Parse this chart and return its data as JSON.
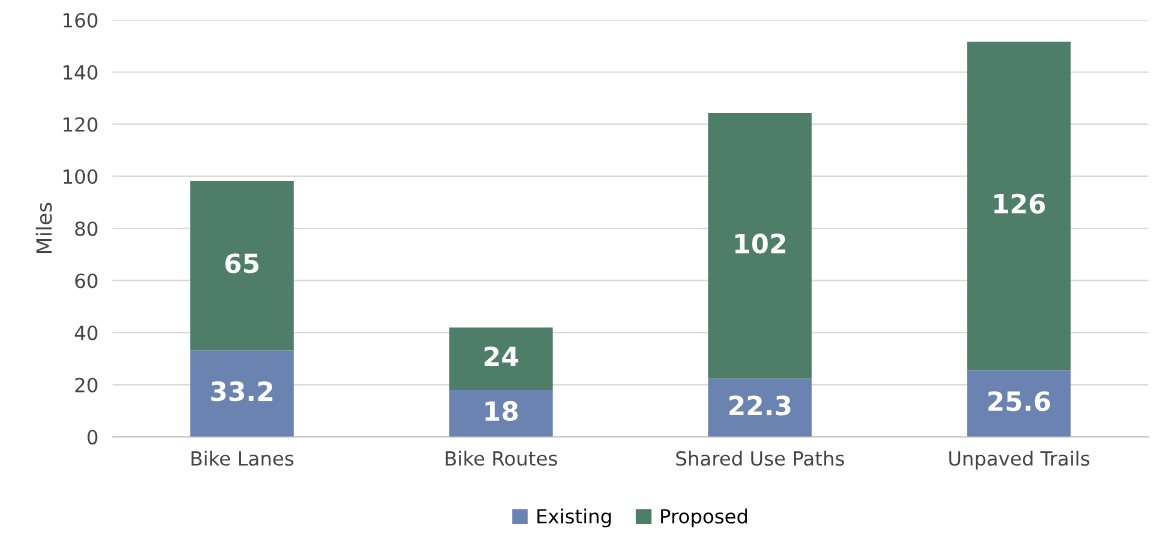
{
  "chart_data": {
    "type": "bar",
    "stacked": true,
    "ylabel": "Miles",
    "categories": [
      "Bike Lanes",
      "Bike Routes",
      "Shared Use Paths",
      "Unpaved Trails"
    ],
    "series": [
      {
        "name": "Existing",
        "color": "#6b83b0",
        "values": [
          33.2,
          18,
          22.3,
          25.6
        ]
      },
      {
        "name": "Proposed",
        "color": "#4e7d6a",
        "values": [
          65,
          24,
          102,
          126
        ]
      }
    ],
    "ylim": [
      0,
      160
    ],
    "yticks": [
      0,
      20,
      40,
      60,
      80,
      100,
      120,
      140,
      160
    ],
    "grid": "y",
    "legend": "bottom",
    "data_labels": true
  }
}
